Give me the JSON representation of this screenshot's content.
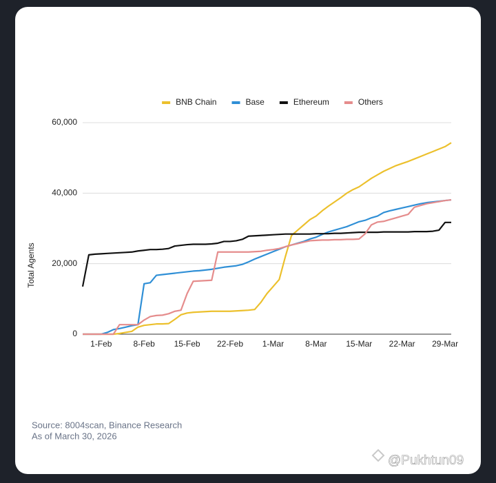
{
  "chart_data": {
    "type": "line",
    "y_label": "Total Agents",
    "categories": [
      null,
      null,
      null,
      "1-Feb",
      null,
      null,
      null,
      null,
      null,
      null,
      "8-Feb",
      null,
      null,
      null,
      null,
      null,
      null,
      "15-Feb",
      null,
      null,
      null,
      null,
      null,
      null,
      "22-Feb",
      null,
      null,
      null,
      null,
      null,
      null,
      "1-Mar",
      null,
      null,
      null,
      null,
      null,
      null,
      "8-Mar",
      null,
      null,
      null,
      null,
      null,
      null,
      "15-Mar",
      null,
      null,
      null,
      null,
      null,
      null,
      "22-Mar",
      null,
      null,
      null,
      null,
      null,
      null,
      "29-Mar",
      null
    ],
    "series": [
      {
        "name": "BNB Chain",
        "color": "#ecc02c",
        "values": [
          0,
          0,
          0,
          0,
          0,
          0,
          200,
          500,
          800,
          2000,
          2500,
          2700,
          2900,
          2900,
          3000,
          4200,
          5500,
          6000,
          6200,
          6300,
          6400,
          6500,
          6500,
          6500,
          6500,
          6600,
          6700,
          6800,
          7000,
          9000,
          11500,
          13500,
          15500,
          22000,
          28000,
          29500,
          31000,
          32500,
          33500,
          35000,
          36300,
          37500,
          38700,
          40000,
          41000,
          41800,
          43000,
          44200,
          45200,
          46200,
          47000,
          47800,
          48400,
          49000,
          49700,
          50400,
          51100,
          51800,
          52500,
          53200,
          54300
        ]
      },
      {
        "name": "Base",
        "color": "#2f8fd6",
        "values": [
          0,
          0,
          0,
          0,
          500,
          1300,
          1600,
          2000,
          2400,
          2700,
          14300,
          14600,
          16700,
          16900,
          17100,
          17300,
          17500,
          17700,
          17900,
          18000,
          18200,
          18400,
          18700,
          19000,
          19200,
          19400,
          19800,
          20500,
          21300,
          22000,
          22700,
          23400,
          24100,
          24800,
          25300,
          25800,
          26300,
          27000,
          27500,
          28300,
          29000,
          29500,
          30000,
          30500,
          31200,
          31900,
          32300,
          33000,
          33500,
          34500,
          35000,
          35400,
          35800,
          36200,
          36600,
          37000,
          37300,
          37500,
          37700,
          37900,
          38100
        ]
      },
      {
        "name": "Ethereum",
        "color": "#111111",
        "values": [
          13500,
          22500,
          22700,
          22800,
          22900,
          23000,
          23100,
          23200,
          23300,
          23600,
          23800,
          24000,
          24000,
          24100,
          24300,
          25000,
          25200,
          25400,
          25500,
          25500,
          25500,
          25600,
          25800,
          26300,
          26300,
          26500,
          26900,
          27800,
          27900,
          28000,
          28100,
          28200,
          28300,
          28400,
          28400,
          28400,
          28400,
          28400,
          28500,
          28500,
          28500,
          28600,
          28600,
          28700,
          28800,
          28900,
          28900,
          28900,
          28900,
          29000,
          29000,
          29000,
          29000,
          29000,
          29100,
          29100,
          29100,
          29200,
          29500,
          31700,
          31700
        ]
      },
      {
        "name": "Others",
        "color": "#e58c8c",
        "values": [
          0,
          0,
          0,
          0,
          0,
          0,
          2700,
          2700,
          2700,
          2700,
          4000,
          5000,
          5300,
          5400,
          5800,
          6500,
          6800,
          11500,
          15000,
          15100,
          15200,
          15300,
          23300,
          23300,
          23300,
          23300,
          23300,
          23300,
          23400,
          23500,
          23800,
          24000,
          24300,
          24800,
          25300,
          25700,
          26100,
          26500,
          26600,
          26700,
          26700,
          26800,
          26800,
          26900,
          26900,
          27000,
          28500,
          31000,
          31800,
          32000,
          32500,
          33000,
          33500,
          34000,
          36000,
          36500,
          37000,
          37300,
          37600,
          37900,
          38100
        ]
      }
    ],
    "ylim": [
      0,
      60000
    ],
    "yticks": [
      0,
      {
        "value": 20000,
        "label": "20,000"
      },
      {
        "value": 40000,
        "label": "40,000"
      },
      {
        "value": 60000,
        "label": "60,000"
      }
    ],
    "grid": true,
    "legend": "top",
    "source_note": "Source: 8004scan, Binance Research",
    "as_of_note": "As of March 30, 2026"
  },
  "watermark": "@Pukhtun09"
}
